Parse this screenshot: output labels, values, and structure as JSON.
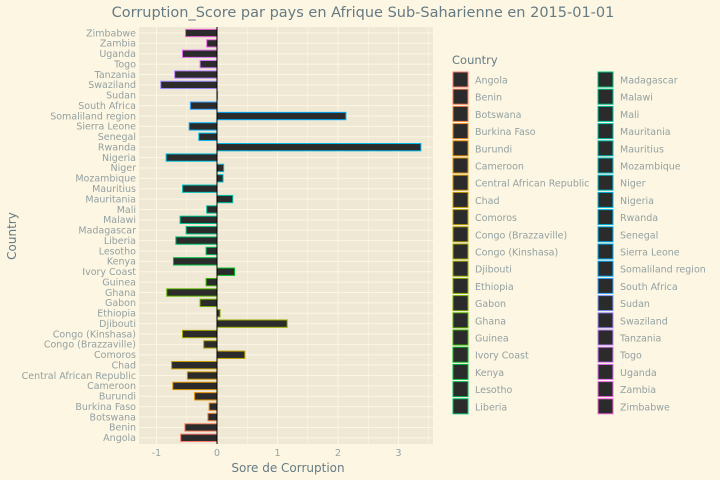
{
  "chart_data": {
    "type": "bar",
    "orientation": "horizontal",
    "title": "Corruption_Score par pays en Afrique Sub-Saharienne en 2015-01-01",
    "xlabel": "Sore de Corruption",
    "ylabel": "Country",
    "xlim": [
      -1.3,
      3.6
    ],
    "xticks": [
      -1,
      0,
      1,
      2,
      3
    ],
    "grid": true,
    "legend": {
      "title": "Country",
      "placement": "right",
      "columns": 2
    },
    "colors": {
      "panel_background": "#eee8d5",
      "page_background": "#fdf6e3",
      "bar_fill": "#2b2b2b",
      "gridline": "#fdf6e3"
    },
    "categories": [
      "Angola",
      "Benin",
      "Botswana",
      "Burkina Faso",
      "Burundi",
      "Cameroon",
      "Central African Republic",
      "Chad",
      "Comoros",
      "Congo (Brazzaville)",
      "Congo (Kinshasa)",
      "Djibouti",
      "Ethiopia",
      "Gabon",
      "Ghana",
      "Guinea",
      "Ivory Coast",
      "Kenya",
      "Lesotho",
      "Liberia",
      "Madagascar",
      "Malawi",
      "Mali",
      "Mauritania",
      "Mauritius",
      "Mozambique",
      "Niger",
      "Nigeria",
      "Rwanda",
      "Senegal",
      "Sierra Leone",
      "Somaliland region",
      "South Africa",
      "Sudan",
      "Swaziland",
      "Tanzania",
      "Togo",
      "Uganda",
      "Zambia",
      "Zimbabwe"
    ],
    "values": [
      -0.6,
      -0.53,
      -0.15,
      -0.13,
      -0.37,
      -0.73,
      -0.49,
      -0.75,
      0.46,
      -0.22,
      -0.57,
      1.16,
      0.05,
      -0.28,
      -0.83,
      -0.18,
      0.29,
      -0.72,
      -0.18,
      -0.68,
      -0.51,
      -0.61,
      -0.17,
      0.26,
      -0.57,
      0.1,
      0.11,
      -0.84,
      3.37,
      -0.3,
      -0.46,
      2.13,
      -0.44,
      0.0,
      -0.93,
      -0.7,
      -0.28,
      -0.57,
      -0.17,
      -0.52
    ],
    "outline_colors": [
      "#f8766d",
      "#f37b59",
      "#ed8141",
      "#e7861b",
      "#e08b00",
      "#d89000",
      "#cf9400",
      "#c59900",
      "#bb9d00",
      "#b0a100",
      "#a3a500",
      "#95a900",
      "#85ad00",
      "#72b000",
      "#5bb300",
      "#39b600",
      "#00b81f",
      "#00ba42",
      "#00bc59",
      "#00be6c",
      "#00bf7d",
      "#00c08c",
      "#00c19b",
      "#00c1a9",
      "#00c0b6",
      "#00bfc3",
      "#00bdd0",
      "#00bbdb",
      "#00b8e5",
      "#00b4ef",
      "#00b0f6",
      "#00abfd",
      "#35a2ff",
      "#7997ff",
      "#9f8cff",
      "#bc81ff",
      "#d078f8",
      "#e06ff0",
      "#ec69e5",
      "#f564d8"
    ]
  }
}
